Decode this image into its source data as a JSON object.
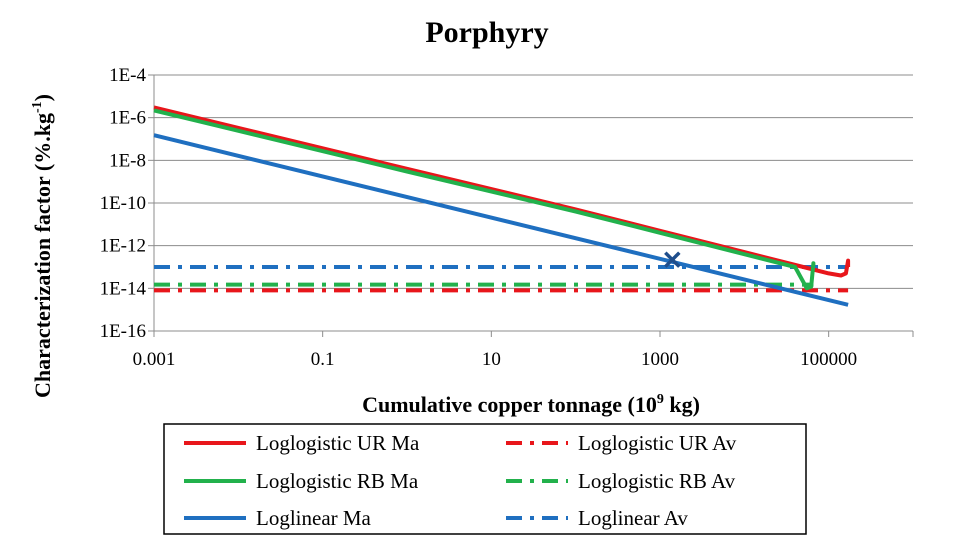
{
  "chart_data": {
    "type": "line",
    "title": "Porphyry",
    "xlabel": {
      "prefix": "Cumulative copper tonnage (10",
      "sup": "9",
      "suffix": " kg)"
    },
    "ylabel": {
      "prefix": "Characterization factor (%.kg",
      "sup": "-1",
      "suffix": ")"
    },
    "x_scale": "log",
    "y_scale": "log",
    "xlim": [
      0.001,
      1000000
    ],
    "ylim": [
      1e-16,
      0.0001
    ],
    "x_ticks": [
      0.001,
      0.1,
      10,
      1000,
      100000
    ],
    "x_tick_labels": [
      "0.001",
      "0.1",
      "10",
      "1000",
      "100000"
    ],
    "y_ticks": [
      1e-16,
      1e-14,
      1e-12,
      1e-10,
      1e-08,
      1e-06,
      0.0001
    ],
    "y_tick_labels": [
      "1E-16",
      "1E-14",
      "1E-12",
      "1E-10",
      "1E-8",
      "1E-6",
      "1E-4"
    ],
    "grid": "horizontal",
    "legend_position": "bottom",
    "series": [
      {
        "name": "Loglogistic UR Ma",
        "color": "#e8161b",
        "style": "solid",
        "x": [
          0.001,
          1,
          100,
          1000,
          10000,
          50000,
          100000,
          140000,
          160000,
          170000,
          170000
        ],
        "y": [
          3e-06,
          4e-09,
          5e-11,
          5e-12,
          5e-13,
          1e-13,
          5e-14,
          4e-14,
          5e-14,
          2e-13,
          1e-13
        ]
      },
      {
        "name": "Loglogistic UR Av",
        "color": "#e8161b",
        "style": "dashdot",
        "x": [
          0.001,
          170000
        ],
        "y": [
          8e-15,
          8e-15
        ]
      },
      {
        "name": "Loglogistic RB Ma",
        "color": "#22b14c",
        "style": "solid",
        "x": [
          0.001,
          1,
          100,
          1000,
          10000,
          40000,
          55000,
          62000,
          66000,
          66000
        ],
        "y": [
          2.2e-06,
          3e-09,
          4e-11,
          4e-12,
          4e-13,
          1e-13,
          1e-14,
          1.2e-14,
          1.5e-13,
          1.2e-13
        ]
      },
      {
        "name": "Loglogistic RB Av",
        "color": "#22b14c",
        "style": "dashdot",
        "x": [
          0.001,
          66000
        ],
        "y": [
          1.5e-14,
          1.5e-14
        ]
      },
      {
        "name": "Loglinear Ma",
        "color": "#1f6fc0",
        "style": "solid",
        "x": [
          0.001,
          170000
        ],
        "y": [
          1.5e-07,
          1.7e-15
        ]
      },
      {
        "name": "Loglinear Av",
        "color": "#1f6fc0",
        "style": "dashdot",
        "x": [
          0.001,
          170000
        ],
        "y": [
          1e-13,
          1e-13
        ]
      }
    ],
    "annotations": [
      {
        "type": "marker",
        "symbol": "x",
        "color": "#1f4e8c",
        "x": 1400,
        "y": 2.2e-13
      }
    ]
  }
}
